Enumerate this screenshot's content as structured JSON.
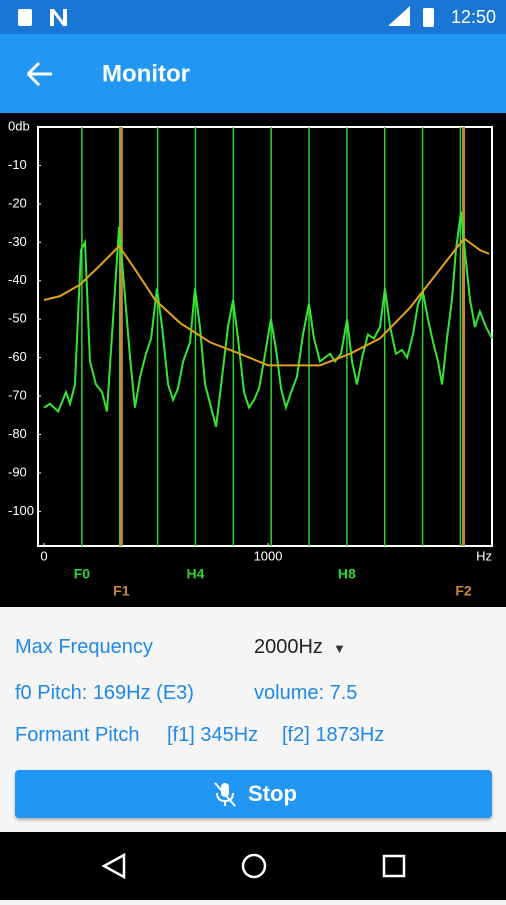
{
  "status_bar": {
    "time": "12:50"
  },
  "app_bar": {
    "title": "Monitor"
  },
  "chart_data": {
    "type": "line",
    "xlim": [
      -27,
      2000
    ],
    "ylim": [
      -109,
      0
    ],
    "xticks": [
      0,
      1000,
      {
        "value": 2000,
        "label": "Hz"
      }
    ],
    "yticks": [
      {
        "value": 0,
        "label": "0db"
      },
      -10,
      -20,
      -30,
      -40,
      -50,
      -60,
      -70,
      -80,
      -90,
      -100
    ],
    "series": [
      {
        "color": "#33e633",
        "x": [
          0,
          27,
          63,
          98,
          116,
          138,
          165,
          183,
          205,
          232,
          259,
          281,
          308,
          335,
          357,
          384,
          406,
          429,
          455,
          478,
          504,
          527,
          554,
          576,
          598,
          621,
          652,
          674,
          696,
          719,
          746,
          768,
          795,
          821,
          844,
          866,
          893,
          915,
          938,
          960,
          987,
          1013,
          1036,
          1058,
          1080,
          1103,
          1129,
          1156,
          1183,
          1205,
          1232,
          1254,
          1277,
          1299,
          1326,
          1353,
          1375,
          1397,
          1420,
          1446,
          1473,
          1500,
          1522,
          1545,
          1571,
          1598,
          1621,
          1647,
          1670,
          1692,
          1714,
          1737,
          1759,
          1777,
          1799,
          1821,
          1839,
          1862,
          1880,
          1902,
          1924,
          1946,
          1973,
          2000
        ],
        "values": [
          -73,
          -72,
          -74,
          -69,
          -72,
          -67,
          -32,
          -30,
          -61,
          -67,
          -69,
          -74,
          -50,
          -26,
          -41,
          -60,
          -73,
          -65,
          -59,
          -55,
          -42,
          -52,
          -67,
          -71,
          -68,
          -61,
          -56,
          -42,
          -52,
          -67,
          -73,
          -78,
          -65,
          -52,
          -45,
          -55,
          -69,
          -73,
          -71,
          -68,
          -59,
          -50,
          -58,
          -68,
          -73,
          -69,
          -65,
          -54,
          -46,
          -55,
          -61,
          -60,
          -59,
          -61,
          -59,
          -50,
          -61,
          -67,
          -60,
          -54,
          -55,
          -52,
          -42,
          -52,
          -59,
          -58,
          -60,
          -54,
          -46,
          -43,
          -50,
          -56,
          -61,
          -67,
          -55,
          -45,
          -32,
          -22,
          -33,
          -45,
          -52,
          -48,
          -52,
          -55
        ]
      },
      {
        "color": "#e0a21e",
        "x": [
          0,
          71,
          161,
          250,
          335,
          406,
          496,
          608,
          741,
          875,
          1000,
          1098,
          1232,
          1366,
          1500,
          1634,
          1768,
          1875,
          1946,
          1987
        ],
        "values": [
          -45,
          -44,
          -41,
          -36,
          -31,
          -37,
          -45,
          -51,
          -56,
          -59,
          -62,
          -62,
          -62,
          -59,
          -55,
          -47,
          -37,
          -29,
          -32,
          -33
        ]
      }
    ],
    "harmonics": {
      "color": "#2bd62b",
      "x": [
        169,
        338,
        507,
        676,
        845,
        1014,
        1183,
        1352,
        1521,
        1690,
        1859
      ],
      "labels": [
        "F0",
        null,
        null,
        "H4",
        null,
        null,
        null,
        "H8",
        null,
        null,
        null
      ]
    },
    "formants": {
      "color": "#c8873a",
      "x": [
        345,
        1873
      ],
      "labels": [
        "F1",
        "F2"
      ]
    }
  },
  "controls": {
    "max_frequency": {
      "label": "Max Frequency",
      "value": "2000Hz"
    },
    "f0_pitch": "f0 Pitch: 169Hz (E3)",
    "volume": "volume: 7.5",
    "formant": {
      "label": "Formant Pitch",
      "f1": "[f1] 345Hz",
      "f2": "[f2] 1873Hz"
    },
    "button": "Stop"
  }
}
